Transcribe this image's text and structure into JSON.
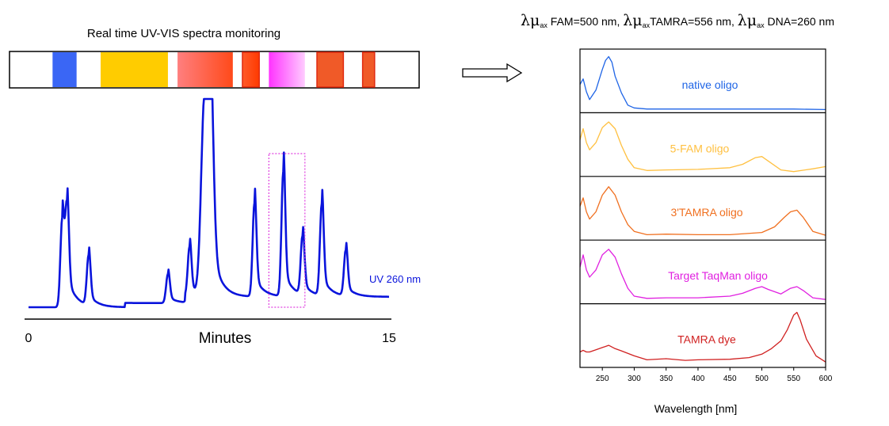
{
  "chart_data": [
    {
      "type": "line",
      "title": "Real time UV-VIS spectra monitoring",
      "xlabel": "Minutes",
      "ylabel": "",
      "xlim": [
        0,
        15
      ],
      "x_ticks": [
        "0",
        "15"
      ],
      "trace_label": "UV 260 nm",
      "trace_color": "#0a14dc",
      "highlight_window": [
        10.0,
        11.5
      ],
      "highlight_color": "#e040e0",
      "peaks": [
        {
          "t": 1.4,
          "h": 0.42
        },
        {
          "t": 1.6,
          "h": 0.45
        },
        {
          "t": 2.5,
          "h": 0.24
        },
        {
          "t": 5.8,
          "h": 0.14
        },
        {
          "t": 6.7,
          "h": 0.24
        },
        {
          "t": 7.3,
          "h": 0.82
        },
        {
          "t": 7.55,
          "h": 0.95
        },
        {
          "t": 9.4,
          "h": 0.45
        },
        {
          "t": 10.6,
          "h": 0.6
        },
        {
          "t": 11.4,
          "h": 0.28
        },
        {
          "t": 12.2,
          "h": 0.44
        },
        {
          "t": 13.2,
          "h": 0.22
        }
      ],
      "color_bar": [
        {
          "start": 1.0,
          "end": 2.0,
          "colors": [
            "#3a66f5",
            "#3a66f5"
          ]
        },
        {
          "start": 3.0,
          "end": 5.8,
          "colors": [
            "#ffcc00",
            "#ffcc00"
          ]
        },
        {
          "start": 6.2,
          "end": 8.5,
          "colors": [
            "#ff7f7f",
            "#ff4a1a"
          ]
        },
        {
          "start": 8.9,
          "end": 9.6,
          "colors": [
            "#ff5a2a",
            "#ff3a00"
          ]
        },
        {
          "start": 10.0,
          "end": 11.5,
          "colors": [
            "#ff33ff",
            "#ffccff"
          ]
        },
        {
          "start": 12.0,
          "end": 13.1,
          "colors": [
            "#f05a28",
            "#f05a28"
          ]
        },
        {
          "start": 13.9,
          "end": 14.4,
          "colors": [
            "#f05a28",
            "#f05a28"
          ]
        }
      ]
    },
    {
      "type": "line",
      "title": "",
      "header_parts": [
        {
          "sym": "λμ",
          "sub": "ax",
          "text": " FAM=500 nm, "
        },
        {
          "sym": "λμ",
          "sub": "ax",
          "text": "TAMRA=556 nm, "
        },
        {
          "sym": "λμ",
          "sub": "ax",
          "text": " DNA=260 nm"
        }
      ],
      "xlabel": "Wavelength [nm]",
      "xlim": [
        215,
        600
      ],
      "x_ticks": [
        250,
        300,
        350,
        400,
        450,
        500,
        550,
        600
      ],
      "grid": false,
      "series": [
        {
          "name": "native oligo",
          "color": "#1e64e6",
          "x": [
            215,
            220,
            225,
            230,
            240,
            250,
            255,
            260,
            265,
            270,
            280,
            290,
            300,
            320,
            350,
            400,
            450,
            500,
            550,
            600
          ],
          "y": [
            0.45,
            0.55,
            0.32,
            0.18,
            0.35,
            0.72,
            0.88,
            0.95,
            0.85,
            0.6,
            0.3,
            0.08,
            0.03,
            0.01,
            0.01,
            0.01,
            0.01,
            0.01,
            0.01,
            0.0
          ]
        },
        {
          "name": "5-FAM oligo",
          "color": "#ffc040",
          "x": [
            215,
            220,
            225,
            230,
            240,
            250,
            260,
            270,
            280,
            290,
            300,
            320,
            350,
            400,
            450,
            470,
            490,
            500,
            510,
            530,
            550,
            580,
            600
          ],
          "y": [
            0.6,
            0.8,
            0.55,
            0.42,
            0.55,
            0.82,
            0.92,
            0.8,
            0.5,
            0.25,
            0.1,
            0.05,
            0.06,
            0.07,
            0.1,
            0.16,
            0.28,
            0.3,
            0.22,
            0.06,
            0.03,
            0.08,
            0.12
          ]
        },
        {
          "name": "3'TAMRA oligo",
          "color": "#f07020",
          "x": [
            215,
            220,
            225,
            230,
            240,
            250,
            260,
            270,
            280,
            290,
            300,
            320,
            350,
            400,
            450,
            500,
            520,
            535,
            545,
            555,
            565,
            580,
            600
          ],
          "y": [
            0.55,
            0.7,
            0.45,
            0.32,
            0.45,
            0.75,
            0.9,
            0.75,
            0.45,
            0.22,
            0.1,
            0.04,
            0.05,
            0.04,
            0.04,
            0.08,
            0.18,
            0.35,
            0.45,
            0.48,
            0.35,
            0.1,
            0.03
          ]
        },
        {
          "name": "Target TaqMan oligo",
          "color": "#e020e0",
          "x": [
            215,
            220,
            225,
            230,
            240,
            250,
            260,
            270,
            280,
            290,
            300,
            320,
            350,
            400,
            450,
            470,
            490,
            500,
            510,
            530,
            545,
            555,
            565,
            580,
            600
          ],
          "y": [
            0.6,
            0.82,
            0.55,
            0.42,
            0.55,
            0.82,
            0.92,
            0.78,
            0.48,
            0.22,
            0.08,
            0.04,
            0.05,
            0.05,
            0.08,
            0.13,
            0.22,
            0.25,
            0.2,
            0.12,
            0.22,
            0.25,
            0.18,
            0.05,
            0.02
          ]
        },
        {
          "name": "TAMRA dye",
          "color": "#d02020",
          "x": [
            215,
            220,
            225,
            230,
            240,
            250,
            260,
            270,
            280,
            300,
            320,
            350,
            380,
            400,
            450,
            480,
            500,
            515,
            530,
            540,
            550,
            555,
            560,
            570,
            585,
            600
          ],
          "y": [
            0.22,
            0.25,
            0.22,
            0.22,
            0.26,
            0.3,
            0.34,
            0.28,
            0.24,
            0.15,
            0.08,
            0.1,
            0.07,
            0.08,
            0.09,
            0.12,
            0.18,
            0.28,
            0.42,
            0.62,
            0.88,
            0.93,
            0.8,
            0.45,
            0.15,
            0.04
          ]
        }
      ]
    }
  ]
}
